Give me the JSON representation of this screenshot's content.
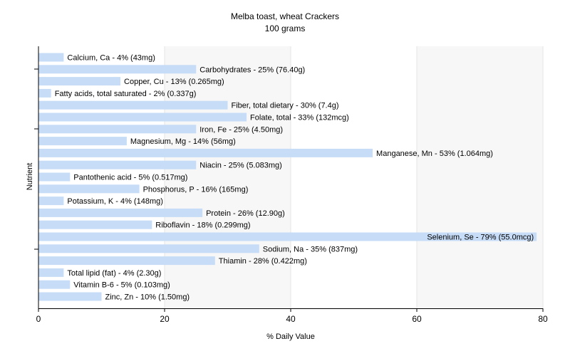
{
  "chart_data": {
    "type": "bar",
    "orientation": "horizontal",
    "title": "Melba toast, wheat Crackers",
    "subtitle": "100 grams",
    "xlabel": "% Daily Value",
    "ylabel": "Nutrient",
    "xlim": [
      0,
      80
    ],
    "xticks": [
      "0",
      "20",
      "40",
      "60",
      "80"
    ],
    "grid": true,
    "bar_color": "#c6dcf7",
    "categories": [
      "Calcium, Ca",
      "Carbohydrates",
      "Copper, Cu",
      "Fatty acids, total saturated",
      "Fiber, total dietary",
      "Folate, total",
      "Iron, Fe",
      "Magnesium, Mg",
      "Manganese, Mn",
      "Niacin",
      "Pantothenic acid",
      "Phosphorus, P",
      "Potassium, K",
      "Protein",
      "Riboflavin",
      "Selenium, Se",
      "Sodium, Na",
      "Thiamin",
      "Total lipid (fat)",
      "Vitamin B-6",
      "Zinc, Zn"
    ],
    "values": [
      4,
      25,
      13,
      2,
      30,
      33,
      25,
      14,
      53,
      25,
      5,
      16,
      4,
      26,
      18,
      79,
      35,
      28,
      4,
      5,
      10
    ],
    "data_labels": [
      "Calcium, Ca - 4% (43mg)",
      "Carbohydrates - 25% (76.40g)",
      "Copper, Cu - 13% (0.265mg)",
      "Fatty acids, total saturated - 2% (0.337g)",
      "Fiber, total dietary - 30% (7.4g)",
      "Folate, total - 33% (132mcg)",
      "Iron, Fe - 25% (4.50mg)",
      "Magnesium, Mg - 14% (56mg)",
      "Manganese, Mn - 53% (1.064mg)",
      "Niacin - 25% (5.083mg)",
      "Pantothenic acid - 5% (0.517mg)",
      "Phosphorus, P - 16% (165mg)",
      "Potassium, K - 4% (148mg)",
      "Protein - 26% (12.90g)",
      "Riboflavin - 18% (0.299mg)",
      "Selenium, Se - 79% (55.0mcg)",
      "Sodium, Na - 35% (837mg)",
      "Thiamin - 28% (0.422mg)",
      "Total lipid (fat) - 4% (2.30g)",
      "Vitamin B-6 - 5% (0.103mg)",
      "Zinc, Zn - 10% (1.50mg)"
    ]
  }
}
